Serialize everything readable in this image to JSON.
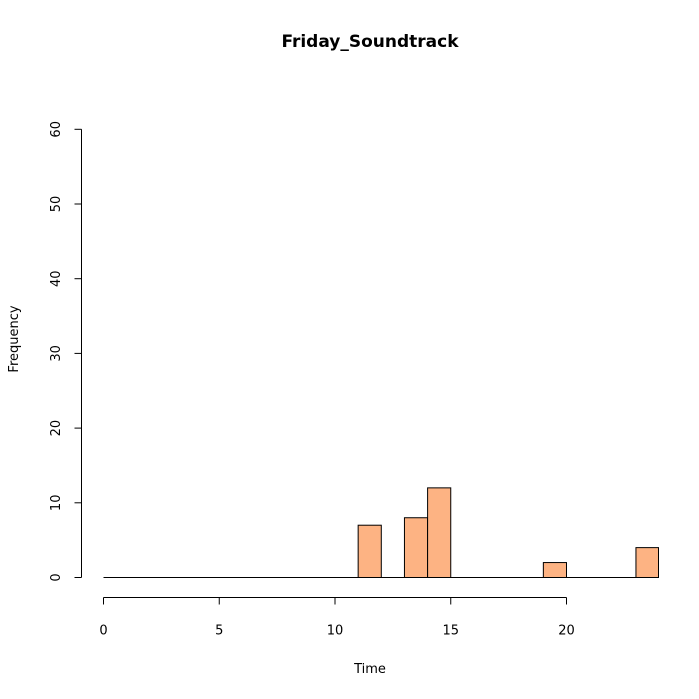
{
  "chart_data": {
    "type": "bar",
    "title": "Friday_Soundtrack",
    "xlabel": "Time",
    "ylabel": "Frequency",
    "xlim": [
      0,
      24
    ],
    "ylim": [
      0,
      60
    ],
    "xticks": [
      0,
      5,
      10,
      15,
      20
    ],
    "yticks": [
      0,
      10,
      20,
      30,
      40,
      50,
      60
    ],
    "bin_width": 1,
    "bins": [
      {
        "start": 0,
        "end": 1,
        "count": 0
      },
      {
        "start": 1,
        "end": 2,
        "count": 0
      },
      {
        "start": 2,
        "end": 3,
        "count": 0
      },
      {
        "start": 3,
        "end": 4,
        "count": 0
      },
      {
        "start": 4,
        "end": 5,
        "count": 0
      },
      {
        "start": 5,
        "end": 6,
        "count": 0
      },
      {
        "start": 6,
        "end": 7,
        "count": 0
      },
      {
        "start": 7,
        "end": 8,
        "count": 0
      },
      {
        "start": 8,
        "end": 9,
        "count": 0
      },
      {
        "start": 9,
        "end": 10,
        "count": 0
      },
      {
        "start": 10,
        "end": 11,
        "count": 0
      },
      {
        "start": 11,
        "end": 12,
        "count": 7
      },
      {
        "start": 12,
        "end": 13,
        "count": 0
      },
      {
        "start": 13,
        "end": 14,
        "count": 8
      },
      {
        "start": 14,
        "end": 15,
        "count": 12
      },
      {
        "start": 15,
        "end": 16,
        "count": 0
      },
      {
        "start": 16,
        "end": 17,
        "count": 0
      },
      {
        "start": 17,
        "end": 18,
        "count": 0
      },
      {
        "start": 18,
        "end": 19,
        "count": 0
      },
      {
        "start": 19,
        "end": 20,
        "count": 2
      },
      {
        "start": 20,
        "end": 21,
        "count": 0
      },
      {
        "start": 21,
        "end": 22,
        "count": 0
      },
      {
        "start": 22,
        "end": 23,
        "count": 0
      },
      {
        "start": 23,
        "end": 24,
        "count": 4
      }
    ],
    "bar_color": "#FDB383",
    "grid": false,
    "legend": "none"
  }
}
